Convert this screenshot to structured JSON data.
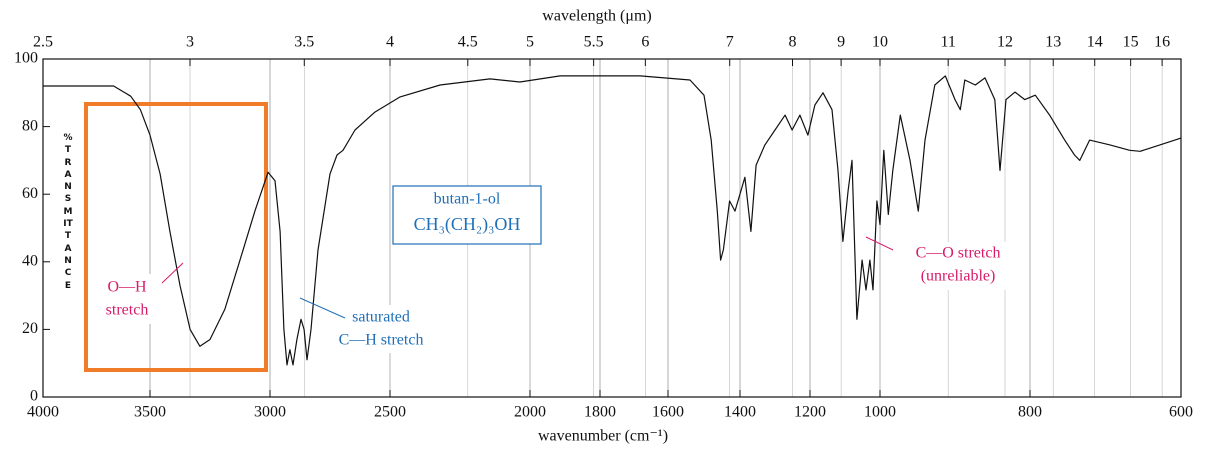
{
  "chart_data": {
    "type": "line",
    "x_label": "wavenumber (cm⁻¹)",
    "x2_label": "wavelength (μm)",
    "y_label": "%TRANSMITTANCE",
    "xlim": [
      4000,
      600
    ],
    "xticks": [
      4000,
      3500,
      3000,
      2500,
      2000,
      1800,
      1600,
      1400,
      1200,
      1000,
      800,
      600
    ],
    "x2ticks": [
      2.5,
      3,
      3.5,
      4,
      4.5,
      5,
      5.5,
      6,
      7,
      8,
      9,
      10,
      11,
      12,
      13,
      14,
      15,
      16
    ],
    "ylim": [
      0,
      100
    ],
    "yticks": [
      0,
      20,
      40,
      60,
      80,
      100
    ],
    "grid": true,
    "x": [
      4000,
      3670,
      3590,
      3545,
      3500,
      3458,
      3417,
      3375,
      3333,
      3292,
      3250,
      3188,
      3125,
      3063,
      3008,
      2979,
      2958,
      2942,
      2929,
      2917,
      2904,
      2888,
      2871,
      2858,
      2846,
      2829,
      2800,
      2750,
      2721,
      2696,
      2646,
      2563,
      2464,
      2321,
      2143,
      2036,
      1914,
      1682,
      1539,
      1500,
      1480,
      1463,
      1454,
      1446,
      1429,
      1414,
      1386,
      1369,
      1354,
      1329,
      1300,
      1271,
      1251,
      1229,
      1206,
      1186,
      1163,
      1137,
      1120,
      1106,
      1091,
      1080,
      1066,
      1051,
      1040,
      1029,
      1020,
      1009,
      1000,
      995,
      989,
      983,
      973,
      960,
      949,
      940,
      927,
      913,
      900,
      893,
      887,
      873,
      860,
      847,
      840,
      832,
      820,
      807,
      793,
      774,
      754,
      741,
      734,
      721,
      694,
      668,
      654,
      628,
      600
    ],
    "series": [
      {
        "color": "#111111",
        "values": [
          92,
          92,
          89,
          85,
          77.5,
          66,
          49,
          33,
          20,
          15,
          17,
          26,
          40.5,
          55,
          66.5,
          64,
          49,
          20,
          9.5,
          14,
          9.5,
          17,
          23,
          20,
          11,
          20,
          43.5,
          66,
          71.6,
          73,
          79,
          84.3,
          88.8,
          92.3,
          94.1,
          93.2,
          95,
          95,
          93.8,
          89.3,
          76,
          55,
          40.5,
          43.6,
          58,
          55,
          65,
          49,
          68.6,
          74.6,
          79,
          83.4,
          79,
          83.4,
          77.5,
          86.4,
          90,
          85,
          67,
          46,
          61,
          70,
          23,
          40.5,
          31.7,
          40.5,
          31.7,
          58,
          51,
          73,
          54,
          67,
          83.4,
          70,
          55,
          76,
          92.3,
          95,
          88,
          85,
          93.8,
          92.3,
          94.4,
          88,
          67,
          88,
          90.2,
          88,
          89.3,
          83.4,
          76,
          71.6,
          70,
          76,
          74.6,
          73,
          72.7,
          74.6,
          76.6
        ]
      }
    ],
    "compound": {
      "name": "butan-1-ol",
      "formula": "CH₃(CH₂)₃OH",
      "color": "#1e6fb8"
    },
    "annotations": [
      {
        "lines": [
          "O—H",
          "stretch"
        ],
        "color": "#d81b6a"
      },
      {
        "lines": [
          "saturated",
          "C—H stretch"
        ],
        "color": "#1e6fb8"
      },
      {
        "lines": [
          "C—O stretch",
          "(unreliable)"
        ],
        "color": "#d81b6a"
      }
    ]
  }
}
